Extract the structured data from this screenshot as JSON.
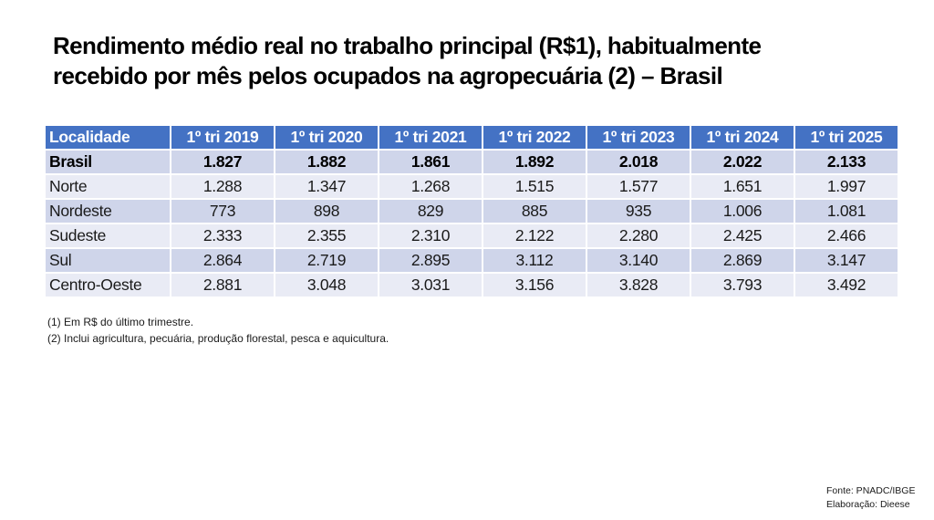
{
  "title": {
    "line1": "Rendimento médio real no trabalho principal (R$1), habitualmente",
    "line2": "recebido por mês pelos ocupados na agropecuária (2) – Brasil"
  },
  "table": {
    "headers": [
      "Localidade",
      "1º tri 2019",
      "1º tri 2020",
      "1º tri 2021",
      "1º tri 2022",
      "1º tri 2023",
      "1º tri 2024",
      "1º tri 2025"
    ],
    "rows": [
      {
        "label": "Brasil",
        "values": [
          "1.827",
          "1.882",
          "1.861",
          "1.892",
          "2.018",
          "2.022",
          "2.133"
        ]
      },
      {
        "label": "Norte",
        "values": [
          "1.288",
          "1.347",
          "1.268",
          "1.515",
          "1.577",
          "1.651",
          "1.997"
        ]
      },
      {
        "label": "Nordeste",
        "values": [
          "773",
          "898",
          "829",
          "885",
          "935",
          "1.006",
          "1.081"
        ]
      },
      {
        "label": "Sudeste",
        "values": [
          "2.333",
          "2.355",
          "2.310",
          "2.122",
          "2.280",
          "2.425",
          "2.466"
        ]
      },
      {
        "label": "Sul",
        "values": [
          "2.864",
          "2.719",
          "2.895",
          "3.112",
          "3.140",
          "2.869",
          "3.147"
        ]
      },
      {
        "label": "Centro-Oeste",
        "values": [
          "2.881",
          "3.048",
          "3.031",
          "3.156",
          "3.828",
          "3.793",
          "3.492"
        ]
      }
    ]
  },
  "notes": [
    "(1) Em R$ do último trimestre.",
    "(2) Inclui agricultura, pecuária, produção florestal, pesca e aquicultura."
  ],
  "source": {
    "fonte": "Fonte: PNADC/IBGE",
    "elaboracao": "Elaboração: Dieese"
  },
  "colors": {
    "header_bg": "#4472c4",
    "row_odd": "#cfd5ea",
    "row_even": "#e9ebf5"
  },
  "chart_data": {
    "type": "table",
    "title": "Rendimento médio real no trabalho principal (R$1), habitualmente recebido por mês pelos ocupados na agropecuária (2) – Brasil",
    "categories": [
      "1º tri 2019",
      "1º tri 2020",
      "1º tri 2021",
      "1º tri 2022",
      "1º tri 2023",
      "1º tri 2024",
      "1º tri 2025"
    ],
    "series": [
      {
        "name": "Brasil",
        "values": [
          1827,
          1882,
          1861,
          1892,
          2018,
          2022,
          2133
        ]
      },
      {
        "name": "Norte",
        "values": [
          1288,
          1347,
          1268,
          1515,
          1577,
          1651,
          1997
        ]
      },
      {
        "name": "Nordeste",
        "values": [
          773,
          898,
          829,
          885,
          935,
          1006,
          1081
        ]
      },
      {
        "name": "Sudeste",
        "values": [
          2333,
          2355,
          2310,
          2122,
          2280,
          2425,
          2466
        ]
      },
      {
        "name": "Sul",
        "values": [
          2864,
          2719,
          2895,
          3112,
          3140,
          2869,
          3147
        ]
      },
      {
        "name": "Centro-Oeste",
        "values": [
          2881,
          3048,
          3031,
          3156,
          3828,
          3793,
          3492
        ]
      }
    ],
    "row_header": "Localidade",
    "units": "R$",
    "notes": [
      "(1) Em R$ do último trimestre.",
      "(2) Inclui agricultura, pecuária, produção florestal, pesca e aquicultura."
    ],
    "source": "Fonte: PNADC/IBGE; Elaboração: Dieese"
  }
}
